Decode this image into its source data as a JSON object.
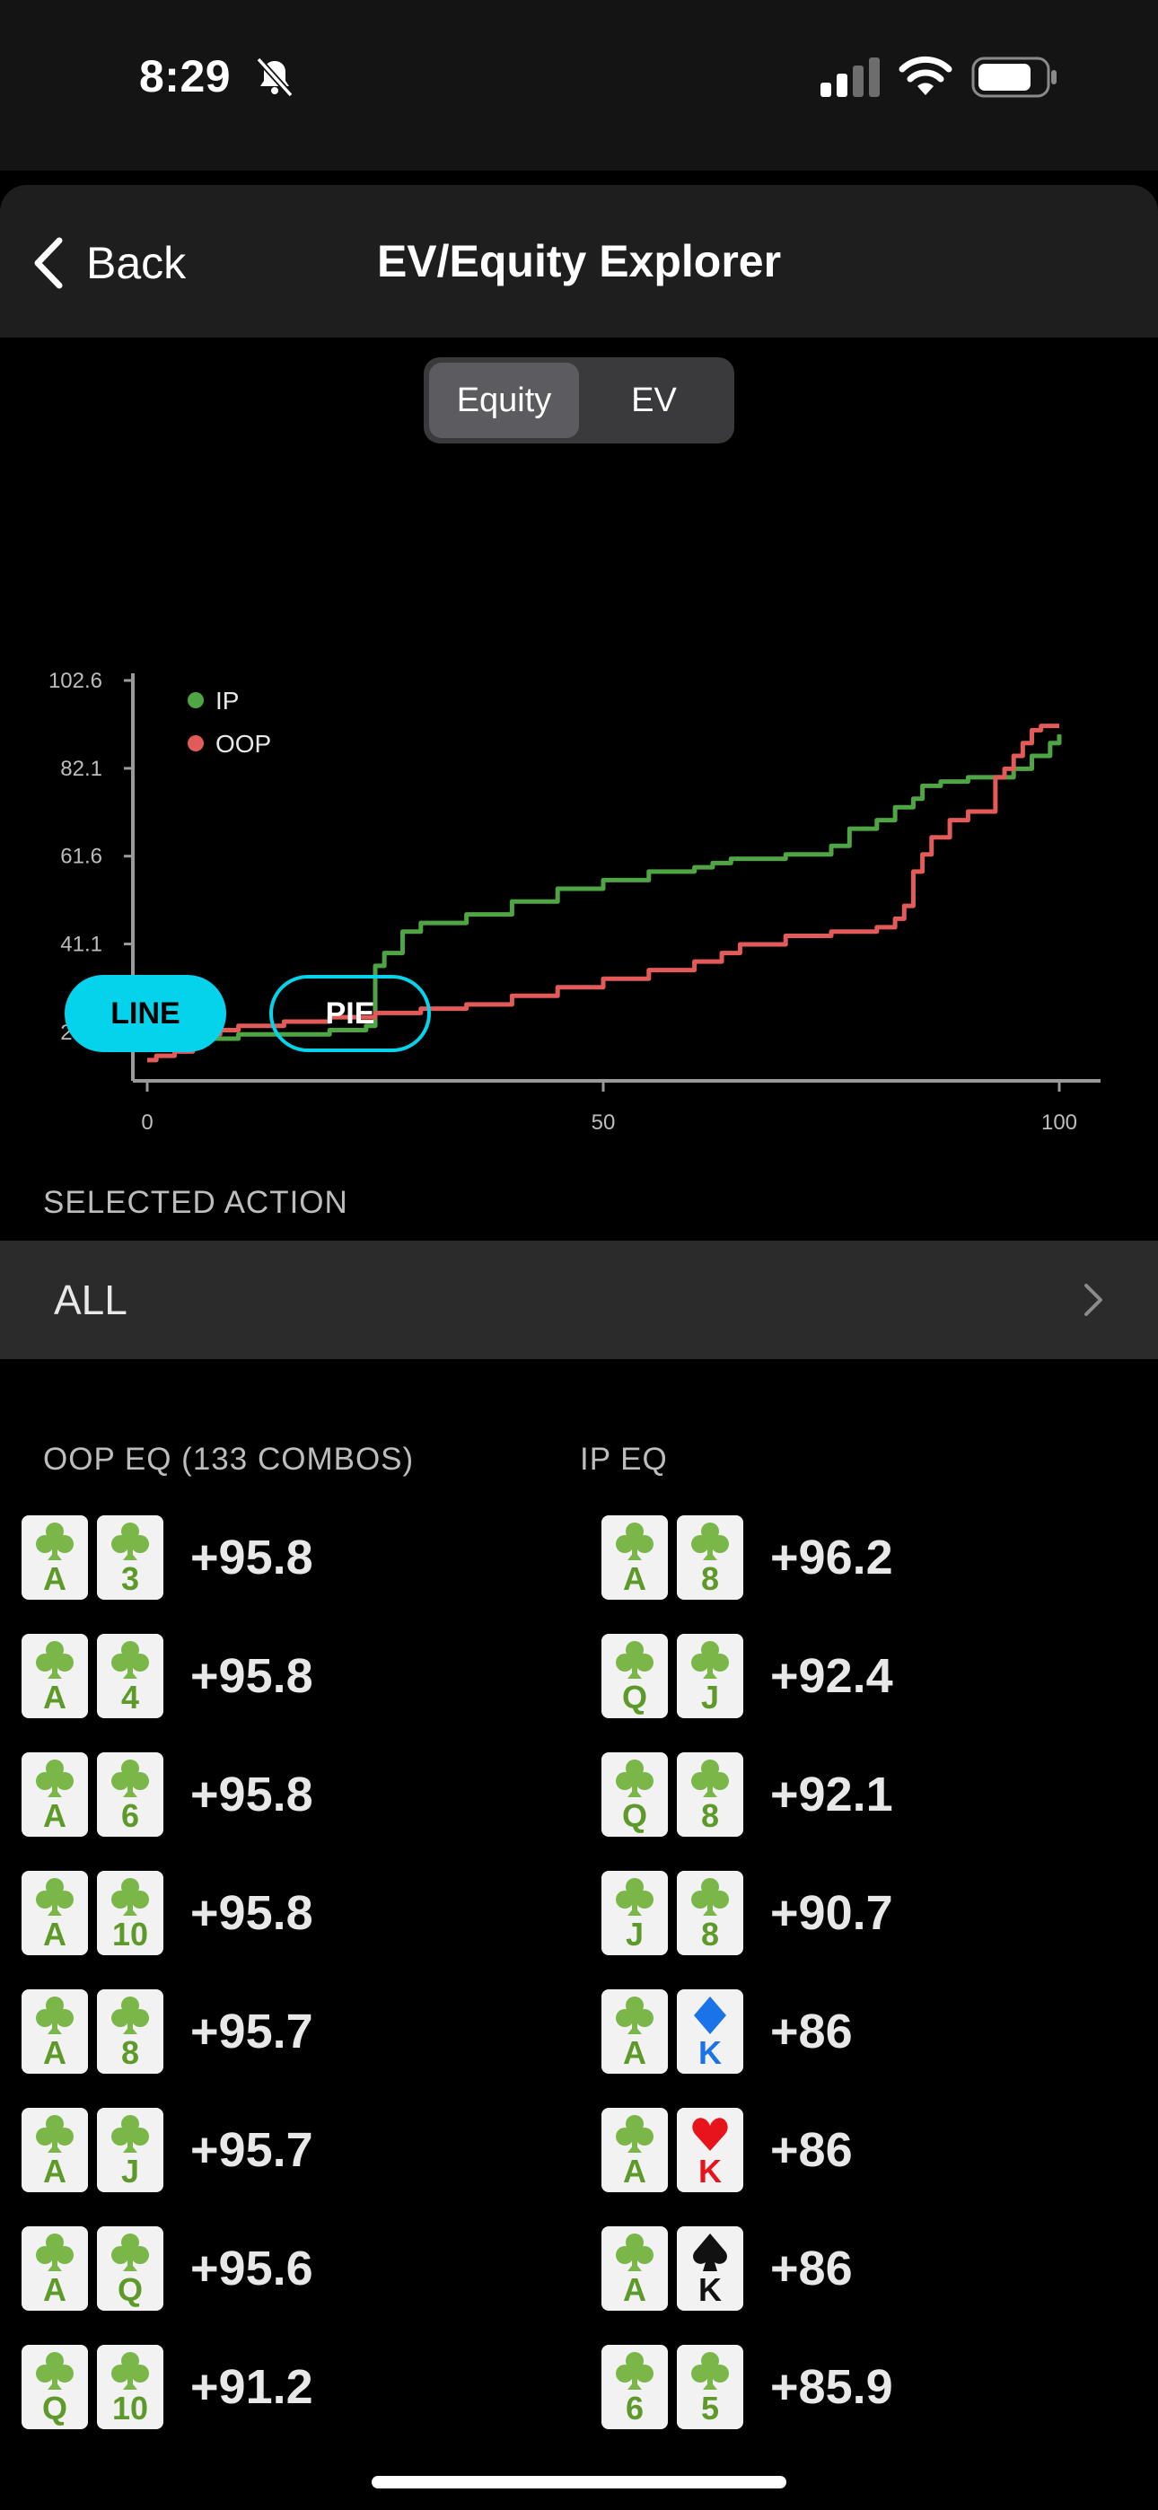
{
  "status": {
    "time": "8:29"
  },
  "header": {
    "back_label": "Back",
    "title": "EV/Equity Explorer"
  },
  "tabs": [
    {
      "label": "Equity",
      "active": true
    },
    {
      "label": "EV",
      "active": false
    }
  ],
  "chart_data": {
    "type": "line",
    "xlim": [
      0,
      100
    ],
    "ylim": [
      10,
      102.6
    ],
    "x_ticks": [
      "0",
      "50",
      "100"
    ],
    "y_ticks": [
      "20.5",
      "41.1",
      "61.6",
      "82.1",
      "102.6"
    ],
    "legend_position": "top-left",
    "series": [
      {
        "name": "IP",
        "color": "#4fa543",
        "points": [
          [
            0,
            18
          ],
          [
            5,
            19
          ],
          [
            10,
            20
          ],
          [
            20,
            21
          ],
          [
            24,
            22
          ],
          [
            25,
            36
          ],
          [
            26,
            39
          ],
          [
            28,
            44
          ],
          [
            30,
            46
          ],
          [
            35,
            48
          ],
          [
            40,
            51
          ],
          [
            45,
            54
          ],
          [
            50,
            56
          ],
          [
            55,
            58
          ],
          [
            60,
            59
          ],
          [
            62,
            60
          ],
          [
            64,
            61
          ],
          [
            65,
            61
          ],
          [
            70,
            62
          ],
          [
            75,
            64
          ],
          [
            77,
            68
          ],
          [
            80,
            70
          ],
          [
            82,
            73
          ],
          [
            84,
            75
          ],
          [
            85,
            78
          ],
          [
            87,
            79
          ],
          [
            90,
            80
          ],
          [
            93,
            80
          ],
          [
            95,
            82
          ],
          [
            97,
            85
          ],
          [
            99,
            88
          ],
          [
            100,
            90
          ]
        ]
      },
      {
        "name": "OOP",
        "color": "#e35b59",
        "points": [
          [
            0,
            14
          ],
          [
            1,
            15
          ],
          [
            3,
            16
          ],
          [
            5,
            17
          ],
          [
            6,
            20
          ],
          [
            8,
            21
          ],
          [
            10,
            22
          ],
          [
            15,
            23
          ],
          [
            20,
            24
          ],
          [
            25,
            25
          ],
          [
            30,
            26
          ],
          [
            35,
            27
          ],
          [
            40,
            29
          ],
          [
            45,
            31
          ],
          [
            50,
            33
          ],
          [
            55,
            35
          ],
          [
            60,
            37
          ],
          [
            63,
            39
          ],
          [
            65,
            41
          ],
          [
            70,
            43
          ],
          [
            75,
            44
          ],
          [
            80,
            45
          ],
          [
            82,
            47
          ],
          [
            83,
            50
          ],
          [
            84,
            58
          ],
          [
            85,
            62
          ],
          [
            86,
            66
          ],
          [
            88,
            70
          ],
          [
            90,
            72
          ],
          [
            92,
            72
          ],
          [
            93,
            80
          ],
          [
            94,
            82
          ],
          [
            95,
            85
          ],
          [
            96,
            88
          ],
          [
            97,
            91
          ],
          [
            98,
            92
          ],
          [
            100,
            92
          ]
        ]
      }
    ]
  },
  "view_buttons": {
    "line": "LINE",
    "pie": "PIE"
  },
  "selected_action": {
    "label": "SELECTED ACTION",
    "value": "ALL"
  },
  "oop": {
    "header": "OOP EQ (133 COMBOS)",
    "combos": [
      {
        "cards": [
          {
            "rank": "A",
            "suit": "club"
          },
          {
            "rank": "3",
            "suit": "club"
          }
        ],
        "eq": "+95.8"
      },
      {
        "cards": [
          {
            "rank": "A",
            "suit": "club"
          },
          {
            "rank": "4",
            "suit": "club"
          }
        ],
        "eq": "+95.8"
      },
      {
        "cards": [
          {
            "rank": "A",
            "suit": "club"
          },
          {
            "rank": "6",
            "suit": "club"
          }
        ],
        "eq": "+95.8"
      },
      {
        "cards": [
          {
            "rank": "A",
            "suit": "club"
          },
          {
            "rank": "10",
            "suit": "club"
          }
        ],
        "eq": "+95.8"
      },
      {
        "cards": [
          {
            "rank": "A",
            "suit": "club"
          },
          {
            "rank": "8",
            "suit": "club"
          }
        ],
        "eq": "+95.7"
      },
      {
        "cards": [
          {
            "rank": "A",
            "suit": "club"
          },
          {
            "rank": "J",
            "suit": "club"
          }
        ],
        "eq": "+95.7"
      },
      {
        "cards": [
          {
            "rank": "A",
            "suit": "club"
          },
          {
            "rank": "Q",
            "suit": "club"
          }
        ],
        "eq": "+95.6"
      },
      {
        "cards": [
          {
            "rank": "Q",
            "suit": "club"
          },
          {
            "rank": "10",
            "suit": "club"
          }
        ],
        "eq": "+91.2"
      }
    ]
  },
  "ip": {
    "header": "IP EQ",
    "combos": [
      {
        "cards": [
          {
            "rank": "A",
            "suit": "club"
          },
          {
            "rank": "8",
            "suit": "club"
          }
        ],
        "eq": "+96.2"
      },
      {
        "cards": [
          {
            "rank": "Q",
            "suit": "club"
          },
          {
            "rank": "J",
            "suit": "club"
          }
        ],
        "eq": "+92.4"
      },
      {
        "cards": [
          {
            "rank": "Q",
            "suit": "club"
          },
          {
            "rank": "8",
            "suit": "club"
          }
        ],
        "eq": "+92.1"
      },
      {
        "cards": [
          {
            "rank": "J",
            "suit": "club"
          },
          {
            "rank": "8",
            "suit": "club"
          }
        ],
        "eq": "+90.7"
      },
      {
        "cards": [
          {
            "rank": "A",
            "suit": "club"
          },
          {
            "rank": "K",
            "suit": "diamond"
          }
        ],
        "eq": "+86"
      },
      {
        "cards": [
          {
            "rank": "A",
            "suit": "club"
          },
          {
            "rank": "K",
            "suit": "heart"
          }
        ],
        "eq": "+86"
      },
      {
        "cards": [
          {
            "rank": "A",
            "suit": "club"
          },
          {
            "rank": "K",
            "suit": "spade"
          }
        ],
        "eq": "+86"
      },
      {
        "cards": [
          {
            "rank": "6",
            "suit": "club"
          },
          {
            "rank": "5",
            "suit": "club"
          }
        ],
        "eq": "+85.9"
      }
    ]
  },
  "suit_colors": {
    "club": "#7ab648",
    "diamond": "#1a73e8",
    "heart": "#e8141c",
    "spade": "#111111"
  },
  "rank_colors": {
    "club": "#5e9a2a",
    "diamond": "#1a73e8",
    "heart": "#e8141c",
    "spade": "#111111"
  }
}
